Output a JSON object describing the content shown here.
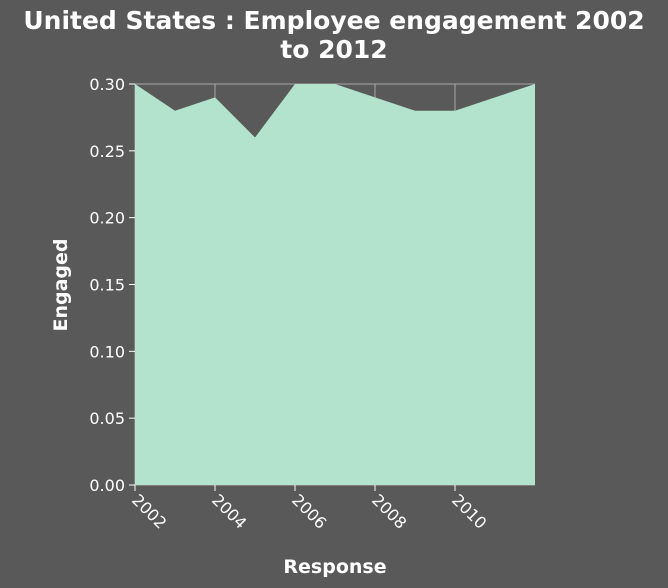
{
  "chart_data": {
    "type": "area",
    "title": "United States : Employee engagement 2002 to 2012",
    "title_lines": [
      "United States : Employee engagement 2002",
      "to 2012"
    ],
    "xlabel": "Response",
    "ylabel": "Engaged",
    "x": [
      2002,
      2003,
      2004,
      2005,
      2006,
      2007,
      2008,
      2009,
      2010,
      2011,
      2012
    ],
    "series": [
      {
        "values": [
          0.3,
          0.28,
          0.29,
          0.26,
          0.3,
          0.3,
          0.29,
          0.28,
          0.28,
          0.29,
          0.3
        ]
      }
    ],
    "xlim": [
      2002,
      2012
    ],
    "ylim": [
      0.0,
      0.3
    ],
    "x_ticks": [
      "2002",
      "2004",
      "2006",
      "2008",
      "2010"
    ],
    "x_tick_values": [
      2002,
      2004,
      2006,
      2008,
      2010
    ],
    "y_ticks": [
      "0.00",
      "0.05",
      "0.10",
      "0.15",
      "0.20",
      "0.25",
      "0.30"
    ],
    "y_tick_values": [
      0.0,
      0.05,
      0.1,
      0.15,
      0.2,
      0.25,
      0.3
    ],
    "grid": true,
    "colors": {
      "background": "#595959",
      "fill": "#b3e3cd",
      "grid": "#a6a6a6",
      "text": "#ffffff"
    }
  }
}
